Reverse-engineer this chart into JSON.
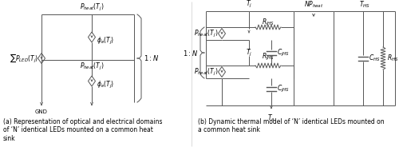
{
  "fig_width": 5.0,
  "fig_height": 1.84,
  "dpi": 100,
  "bg_color": "#ffffff",
  "caption_a": "(a) Representation of optical and electrical domains\nof ‘N’ identical LEDs mounted on a common heat\nsink",
  "caption_b": "(b) Dynamic thermal model of ‘N’ identical LEDs mounted on\na common heat sink",
  "label_Pheat": "$P_{heat}(T_j)$",
  "label_phie": "$\\phi_e(T_j)$",
  "label_Pheat2": "$P_{heat}(T_j)$",
  "label_phie2": "$\\phi_e(T_j)$",
  "label_sumPLED": "$\\sum P_{LED}(T_j)$",
  "label_1N_right": "$1 : N$",
  "label_GND": "GND",
  "label_Tj_top": "$T_j$",
  "label_RjHS_top": "$R_{jHS}$",
  "label_NPheat": "$NP_{heat}$",
  "label_THS": "$T_{HS}$",
  "label_CjHS_top": "$C_{jHS}$",
  "label_Tj_mid": "$T_j$",
  "label_Pheat_b_top": "$P_{heat}(T_j)$",
  "label_1N_left": "$1 : N$",
  "label_RjHS_bot": "$R_{jHS}$",
  "label_CjHS_bot": "$C_{jHS}$",
  "label_Pheat_b_bot": "$P_{heat}(T_j)$",
  "label_Ta": "$T_a$",
  "label_CHS": "$C_{HS}$",
  "label_RHS": "$R_{HS}$"
}
